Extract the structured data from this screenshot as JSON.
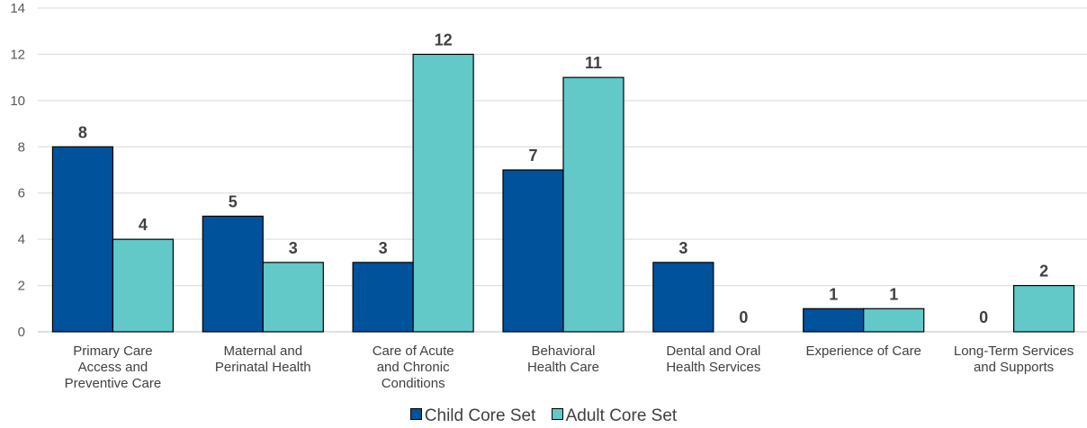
{
  "chart_data": {
    "type": "bar",
    "categories": [
      [
        "Primary Care",
        "Access and",
        "Preventive Care"
      ],
      [
        "Maternal and",
        "Perinatal Health"
      ],
      [
        "Care of Acute",
        "and Chronic",
        "Conditions"
      ],
      [
        "Behavioral",
        "Health Care"
      ],
      [
        "Dental and Oral",
        "Health Services"
      ],
      [
        "Experience of Care"
      ],
      [
        "Long-Term Services",
        "and Supports"
      ]
    ],
    "series": [
      {
        "name": "Child Core Set",
        "color": "#00529B",
        "values": [
          8,
          5,
          3,
          7,
          3,
          1,
          0
        ]
      },
      {
        "name": "Adult Core Set",
        "color": "#62C8C8",
        "values": [
          4,
          3,
          12,
          11,
          0,
          1,
          2
        ]
      }
    ],
    "ylim": [
      0,
      14
    ],
    "yticks": [
      0,
      2,
      4,
      6,
      8,
      10,
      12,
      14
    ],
    "grid": true,
    "legend_position": "bottom"
  }
}
